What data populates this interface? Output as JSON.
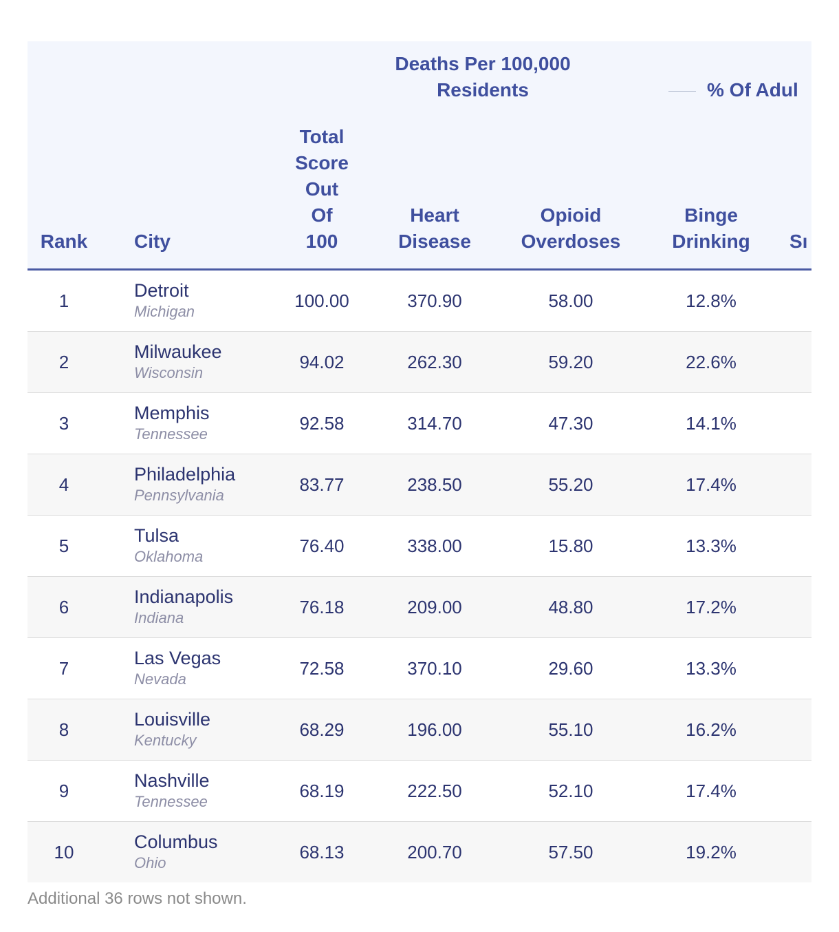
{
  "header": {
    "group_deaths": "Deaths Per 100,000\nResidents",
    "group_adults": "% Of Adul",
    "columns": {
      "rank": "Rank",
      "city": "City",
      "total": "Total\nScore\nOut\nOf\n100",
      "heart": "Heart\nDisease",
      "opioid": "Opioid\nOverdoses",
      "binge": "Binge\nDrinking",
      "smoke": "Sı"
    }
  },
  "rows": [
    {
      "rank": "1",
      "city": "Detroit",
      "state": "Michigan",
      "total": "100.00",
      "heart": "370.90",
      "opioid": "58.00",
      "binge": "12.8%"
    },
    {
      "rank": "2",
      "city": "Milwaukee",
      "state": "Wisconsin",
      "total": "94.02",
      "heart": "262.30",
      "opioid": "59.20",
      "binge": "22.6%"
    },
    {
      "rank": "3",
      "city": "Memphis",
      "state": "Tennessee",
      "total": "92.58",
      "heart": "314.70",
      "opioid": "47.30",
      "binge": "14.1%"
    },
    {
      "rank": "4",
      "city": "Philadelphia",
      "state": "Pennsylvania",
      "total": "83.77",
      "heart": "238.50",
      "opioid": "55.20",
      "binge": "17.4%"
    },
    {
      "rank": "5",
      "city": "Tulsa",
      "state": "Oklahoma",
      "total": "76.40",
      "heart": "338.00",
      "opioid": "15.80",
      "binge": "13.3%"
    },
    {
      "rank": "6",
      "city": "Indianapolis",
      "state": "Indiana",
      "total": "76.18",
      "heart": "209.00",
      "opioid": "48.80",
      "binge": "17.2%"
    },
    {
      "rank": "7",
      "city": "Las Vegas",
      "state": "Nevada",
      "total": "72.58",
      "heart": "370.10",
      "opioid": "29.60",
      "binge": "13.3%"
    },
    {
      "rank": "8",
      "city": "Louisville",
      "state": "Kentucky",
      "total": "68.29",
      "heart": "196.00",
      "opioid": "55.10",
      "binge": "16.2%"
    },
    {
      "rank": "9",
      "city": "Nashville",
      "state": "Tennessee",
      "total": "68.19",
      "heart": "222.50",
      "opioid": "52.10",
      "binge": "17.4%"
    },
    {
      "rank": "10",
      "city": "Columbus",
      "state": "Ohio",
      "total": "68.13",
      "heart": "200.70",
      "opioid": "57.50",
      "binge": "19.2%"
    }
  ],
  "footnote": "Additional 36 rows not shown.",
  "colors": {
    "header_text": "#3f4f9e",
    "header_bg": "#f3f6fd",
    "row_alt_bg": "#f7f7f7",
    "body_text": "#2c3470",
    "state_text": "#8d8ea6"
  }
}
